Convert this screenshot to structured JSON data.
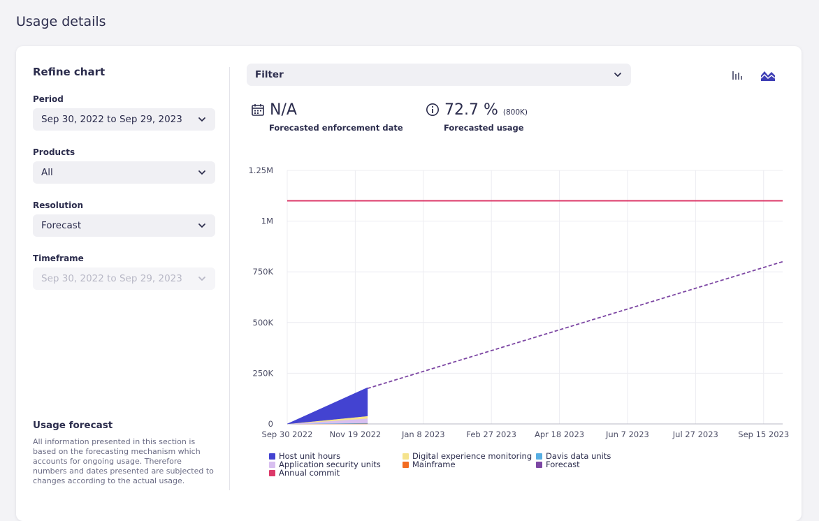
{
  "page": {
    "title": "Usage details"
  },
  "left": {
    "refine_title": "Refine chart",
    "period": {
      "label": "Period",
      "value": "Sep 30, 2022 to Sep 29, 2023"
    },
    "products": {
      "label": "Products",
      "value": "All"
    },
    "resolution": {
      "label": "Resolution",
      "value": "Forecast"
    },
    "timeframe": {
      "label": "Timeframe",
      "value": "Sep 30, 2022 to Sep 29, 2023"
    },
    "forecast_title": "Usage forecast",
    "forecast_text": "All information presented in this section is based on the forecasting mechanism which accounts for ongoing usage. Therefore numbers and dates presented are subjected to changes according to the actual usage."
  },
  "toolbar": {
    "filter_label": "Filter",
    "bar_chart_icon": "bar-chart-icon",
    "area_chart_icon": "area-chart-icon"
  },
  "metrics": {
    "enforcement": {
      "value": "N/A",
      "label": "Forecasted enforcement date",
      "icon": "calendar-icon"
    },
    "usage": {
      "value": "72.7 %",
      "note": "(800K)",
      "label": "Forecasted usage",
      "icon": "info-icon"
    }
  },
  "colors": {
    "host_unit_hours": "#4343d1",
    "digital_experience_monitoring": "#f5e38c",
    "davis_data_units": "#57aee3",
    "application_security_units": "#d8bff0",
    "mainframe": "#f26c21",
    "forecast": "#7c46a3",
    "annual_commit": "#dc3969"
  },
  "chart_data": {
    "type": "area",
    "y_ticks": [
      "0",
      "250K",
      "500K",
      "750K",
      "1M",
      "1.25M"
    ],
    "x_ticks": [
      "Sep 30 2022",
      "Nov 19 2022",
      "Jan 8 2023",
      "Feb 27 2023",
      "Apr 18 2023",
      "Jun 7 2023",
      "Jul 27 2023",
      "Sep 15 2023"
    ],
    "ylim": [
      0,
      1250000
    ],
    "grid": true,
    "x_start": "2022-09-30",
    "x_end": "2023-09-29",
    "series": [
      {
        "name": "Host unit hours",
        "type": "area",
        "x": [
          "2022-09-30",
          "2022-11-28"
        ],
        "y": [
          0,
          140000
        ]
      },
      {
        "name": "Digital experience monitoring",
        "type": "area",
        "x": [
          "2022-09-30",
          "2022-11-28"
        ],
        "y": [
          0,
          12000
        ]
      },
      {
        "name": "Davis data units",
        "type": "area",
        "x": [
          "2022-09-30",
          "2022-11-28"
        ],
        "y": [
          0,
          3000
        ]
      },
      {
        "name": "Application security units",
        "type": "area",
        "x": [
          "2022-09-30",
          "2022-11-28"
        ],
        "y": [
          0,
          22000
        ]
      },
      {
        "name": "Mainframe",
        "type": "area",
        "x": [
          "2022-09-30",
          "2022-11-28"
        ],
        "y": [
          0,
          2000
        ]
      },
      {
        "name": "Forecast",
        "type": "line",
        "dashed": true,
        "x": [
          "2022-11-28",
          "2023-09-29"
        ],
        "y": [
          175000,
          800000
        ]
      },
      {
        "name": "Annual commit",
        "type": "line",
        "x": [
          "2022-09-30",
          "2023-09-29"
        ],
        "y": [
          1100000,
          1100000
        ]
      }
    ],
    "legend": [
      {
        "name": "Host unit hours",
        "color": "#4343d1"
      },
      {
        "name": "Digital experience monitoring",
        "color": "#f5e38c"
      },
      {
        "name": "Davis data units",
        "color": "#57aee3"
      },
      {
        "name": "Application security units",
        "color": "#d8bff0"
      },
      {
        "name": "Mainframe",
        "color": "#f26c21"
      },
      {
        "name": "Forecast",
        "color": "#7c46a3"
      },
      {
        "name": "Annual commit",
        "color": "#dc3969"
      }
    ],
    "legend_position": "bottom"
  }
}
